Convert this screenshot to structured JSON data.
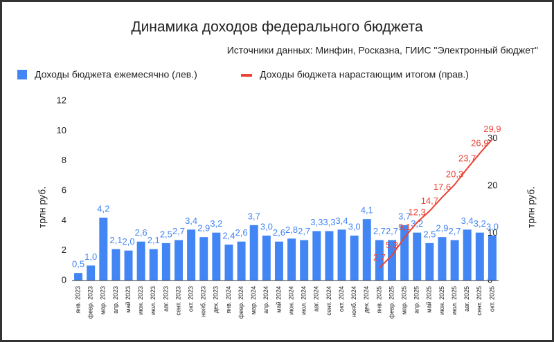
{
  "chart_data": {
    "type": "bar_line",
    "title": "Динамика доходов федерального бюджета",
    "subtitle": "Источники данных: Минфин, Росказна, ГИИС \"Электронный бюджет\"",
    "y_label": "трлн руб.",
    "y2_label": "трлн руб.",
    "legend": "top-left",
    "grid": false,
    "categories": [
      "янв. 2023",
      "февр. 2023",
      "мар. 2023",
      "апр. 2023",
      "май 2023",
      "июн. 2023",
      "июл. 2023",
      "авг. 2023",
      "сент. 2023",
      "окт. 2023",
      "нояб. 2023",
      "дек. 2023",
      "янв. 2024",
      "февр. 2024",
      "мар. 2024",
      "апр. 2024",
      "май 2024",
      "июн. 2024",
      "июл. 2024",
      "авг. 2024",
      "сент. 2024",
      "окт. 2024",
      "нояб. 2024",
      "дек. 2024",
      "янв. 2025",
      "февр. 2025",
      "мар. 2025",
      "апр. 2025",
      "май 2025",
      "июн. 2025",
      "июл. 2025",
      "авг. 2025",
      "сент. 2025",
      "окт. 2025"
    ],
    "ylim": [
      0,
      12
    ],
    "yticks": [
      0,
      2,
      4,
      6,
      8,
      10,
      12
    ],
    "y2lim": [
      0,
      38
    ],
    "y2ticks": [
      0,
      10,
      20,
      30
    ],
    "series": [
      {
        "name": "Доходы бюджета ежемесячно (лев.)",
        "color": "#4285f4",
        "kind": "bar",
        "values": [
          0.5,
          1.0,
          4.2,
          2.1,
          2.0,
          2.6,
          2.1,
          2.5,
          2.7,
          3.4,
          2.9,
          3.2,
          2.4,
          2.6,
          3.7,
          3.0,
          2.6,
          2.8,
          2.7,
          3.3,
          3.3,
          3.4,
          3.0,
          4.1,
          2.7,
          2.7,
          3.7,
          3.2,
          2.5,
          2.9,
          2.7,
          3.4,
          3.2,
          3.0
        ],
        "value_labels": [
          "0,5",
          "1,0",
          "4,2",
          "2,1",
          "2,0",
          "2,6",
          "2,1",
          "2,5",
          "2,7",
          "3,4",
          "2,9",
          "3,2",
          "2,4",
          "2,6",
          "3,7",
          "3,0",
          "2,6",
          "2,8",
          "2,7",
          "3,3",
          "3,3",
          "3,4",
          "3,0",
          "4,1",
          "2,7",
          "2,7",
          "3,7",
          "3,2",
          "2,5",
          "2,9",
          "2,7",
          "3,4",
          "3,2",
          "3,0"
        ]
      },
      {
        "name": "Доходы бюджета нарастающим итогом (прав.)",
        "color": "#ea4335",
        "kind": "line",
        "axis": "y2",
        "values": [
          null,
          null,
          null,
          null,
          null,
          null,
          null,
          null,
          null,
          null,
          null,
          null,
          null,
          null,
          null,
          null,
          null,
          null,
          null,
          null,
          null,
          null,
          null,
          null,
          2.7,
          5.3,
          9.1,
          12.3,
          14.7,
          17.6,
          20.3,
          23.7,
          26.9,
          29.9
        ],
        "value_labels": [
          null,
          null,
          null,
          null,
          null,
          null,
          null,
          null,
          null,
          null,
          null,
          null,
          null,
          null,
          null,
          null,
          null,
          null,
          null,
          null,
          null,
          null,
          null,
          null,
          "2,7",
          "5,3",
          "9,1",
          "12,3",
          "14,7",
          "17,6",
          "20,3",
          "23,7",
          "26,9",
          "29,9"
        ]
      }
    ]
  }
}
